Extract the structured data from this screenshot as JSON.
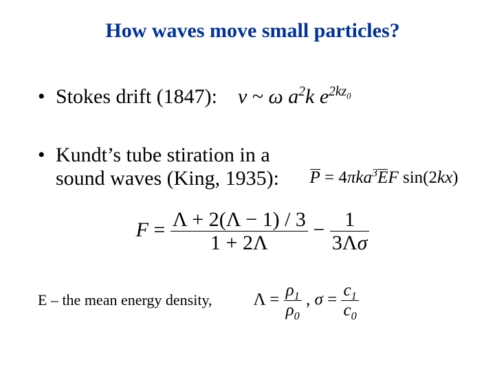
{
  "title": "How waves move small particles?",
  "bullets": {
    "b1": "Stokes drift (1847):",
    "b2": "Kundt’s tube stiration in a sound waves (King, 1935):"
  },
  "formulas": {
    "f1": {
      "lhs": "v",
      "tilde": "~",
      "omega": "ω",
      "a": "a",
      "a_pow": "2",
      "k": "k",
      "e": "e",
      "exp_coef": "2",
      "exp_k": "k",
      "exp_z": "z",
      "exp_sub": "0"
    },
    "f2": {
      "P": "P",
      "eq": " = 4",
      "pi": "π",
      "ka": "ka",
      "pow3": "3",
      "E": "E",
      "F": "F",
      "sin": " sin(2",
      "kx": "kx",
      "close": ")"
    },
    "f3": {
      "F": "F",
      "eq": " = ",
      "num": "Λ + 2(Λ − 1) / 3",
      "den": "1 + 2Λ",
      "minus": " − ",
      "num2": "1",
      "den2_a": "3Λ",
      "den2_sigma": "σ"
    },
    "f4": {
      "lambda": "Λ = ",
      "rho1": "ρ",
      "sub1": "1",
      "rho0": "ρ",
      "sub0": "0",
      "comma": " ,   ",
      "sigma": "σ",
      "eq2": " = ",
      "c1": "c",
      "c1sub": "1",
      "c0": "c",
      "c0sub": "0"
    }
  },
  "note": "E – the mean energy density,"
}
